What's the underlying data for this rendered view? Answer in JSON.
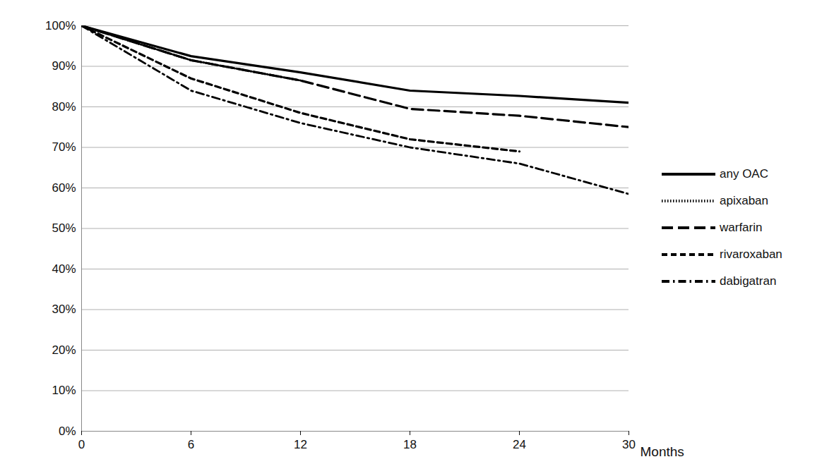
{
  "chart_data": {
    "type": "line",
    "x_label": "Months",
    "x": [
      0,
      6,
      12,
      18,
      24,
      30
    ],
    "xlim": [
      0,
      30
    ],
    "xticks": [
      0,
      6,
      12,
      18,
      24,
      30
    ],
    "ylim": [
      0,
      100
    ],
    "yticks": [
      {
        "value": 0,
        "label": "0%"
      },
      {
        "value": 10,
        "label": "10%"
      },
      {
        "value": 20,
        "label": "20%"
      },
      {
        "value": 30,
        "label": "30%"
      },
      {
        "value": 40,
        "label": "40%"
      },
      {
        "value": 50,
        "label": "50%"
      },
      {
        "value": 60,
        "label": "60%"
      },
      {
        "value": 70,
        "label": "70%"
      },
      {
        "value": 80,
        "label": "80%"
      },
      {
        "value": 90,
        "label": "90%"
      },
      {
        "value": 100,
        "label": "100%"
      }
    ],
    "grid": true,
    "legend": "right",
    "series": [
      {
        "name": "any OAC",
        "color": "#000000",
        "line_style": "solid",
        "values": [
          100,
          92.5,
          88.5,
          84,
          82.7,
          81
        ]
      },
      {
        "name": "apixaban",
        "color": "#000000",
        "line_style": "dotted",
        "values": [
          100,
          91.5,
          86.5,
          null,
          null,
          null
        ]
      },
      {
        "name": "warfarin",
        "color": "#000000",
        "line_style": "long-dash",
        "values": [
          100,
          91.5,
          86.5,
          79.5,
          77.8,
          75
        ]
      },
      {
        "name": "rivaroxaban",
        "color": "#000000",
        "line_style": "dashed",
        "values": [
          100,
          87,
          78.5,
          72,
          69,
          null
        ]
      },
      {
        "name": "dabigatran",
        "color": "#000000",
        "line_style": "dash-dot",
        "values": [
          100,
          84,
          76,
          70,
          66,
          58.5
        ]
      }
    ]
  }
}
